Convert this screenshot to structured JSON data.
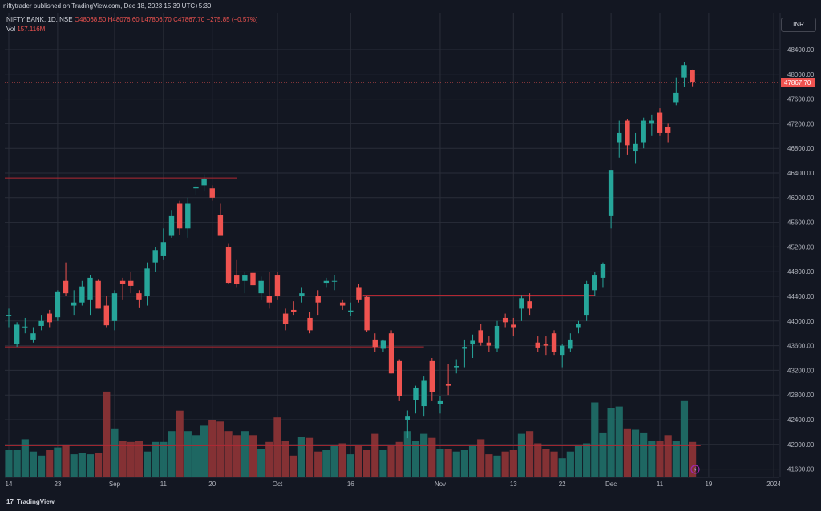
{
  "header": {
    "published_line": "niftytrader published on TradingView.com, Dec 18, 2023 15:39 UTC+5:30"
  },
  "legend": {
    "symbol": "NIFTY BANK, 1D, NSE",
    "o": "O48068.50",
    "h": "H48076.60",
    "l": "L47806.70",
    "c": "C47867.70",
    "change": "−275.85 (−0.57%)",
    "vol_label": "Vol",
    "vol_value": "157.116M"
  },
  "currency": "INR",
  "footer": {
    "brand_mark": "17",
    "brand": "TradingView"
  },
  "colors": {
    "background": "#131722",
    "up": "#26a69a",
    "down": "#ef5350",
    "grid": "#2a2e39",
    "level_line": "#b22833",
    "last_price_bg": "#ef5350"
  },
  "chart_data": {
    "type": "candlestick",
    "last_price_label": "47867.70",
    "ylim": [
      41400,
      48800
    ],
    "y_ticks": [
      41600,
      42000,
      42400,
      42800,
      43200,
      43600,
      44000,
      44400,
      44800,
      45200,
      45600,
      46000,
      46400,
      46800,
      47200,
      47600,
      48000,
      48400
    ],
    "x_ticks": [
      {
        "label": "14",
        "index": 0
      },
      {
        "label": "23",
        "index": 6
      },
      {
        "label": "Sep",
        "index": 13
      },
      {
        "label": "11",
        "index": 19
      },
      {
        "label": "20",
        "index": 25
      },
      {
        "label": "Oct",
        "index": 33
      },
      {
        "label": "16",
        "index": 42
      },
      {
        "label": "Nov",
        "index": 53
      },
      {
        "label": "13",
        "index": 62
      },
      {
        "label": "22",
        "index": 68
      },
      {
        "label": "Dec",
        "index": 74
      },
      {
        "label": "11",
        "index": 80
      },
      {
        "label": "19",
        "index": 86
      },
      {
        "label": "2024",
        "index": 94
      }
    ],
    "levels": [
      {
        "y": 46320,
        "from_index": 0,
        "to_index": 28
      },
      {
        "y": 44420,
        "from_index": 44,
        "to_index": 72
      },
      {
        "y": 43580,
        "from_index": 0,
        "to_index": 51
      },
      {
        "y": 41980,
        "from_index": 0,
        "to_index": 85
      }
    ],
    "candles": [
      {
        "o": 44080,
        "h": 44200,
        "l": 43900,
        "c": 44100,
        "v": 0.2
      },
      {
        "o": 43620,
        "h": 43980,
        "l": 43580,
        "c": 43940,
        "v": 0.2
      },
      {
        "o": 43900,
        "h": 44050,
        "l": 43800,
        "c": 43910,
        "v": 0.28
      },
      {
        "o": 43700,
        "h": 43900,
        "l": 43650,
        "c": 43800,
        "v": 0.19
      },
      {
        "o": 43920,
        "h": 44100,
        "l": 43850,
        "c": 44000,
        "v": 0.16
      },
      {
        "o": 44120,
        "h": 44180,
        "l": 43900,
        "c": 43980,
        "v": 0.2
      },
      {
        "o": 44060,
        "h": 44500,
        "l": 44000,
        "c": 44480,
        "v": 0.22
      },
      {
        "o": 44650,
        "h": 44950,
        "l": 44400,
        "c": 44450,
        "v": 0.24
      },
      {
        "o": 44250,
        "h": 44500,
        "l": 44100,
        "c": 44300,
        "v": 0.17
      },
      {
        "o": 44300,
        "h": 44650,
        "l": 44250,
        "c": 44560,
        "v": 0.18
      },
      {
        "o": 44350,
        "h": 44750,
        "l": 44100,
        "c": 44700,
        "v": 0.17
      },
      {
        "o": 44650,
        "h": 44680,
        "l": 44200,
        "c": 44200,
        "v": 0.18
      },
      {
        "o": 44250,
        "h": 44400,
        "l": 43900,
        "c": 43930,
        "v": 0.63
      },
      {
        "o": 44000,
        "h": 44500,
        "l": 43850,
        "c": 44450,
        "v": 0.36
      },
      {
        "o": 44650,
        "h": 44700,
        "l": 44350,
        "c": 44600,
        "v": 0.27
      },
      {
        "o": 44650,
        "h": 44800,
        "l": 44450,
        "c": 44570,
        "v": 0.26
      },
      {
        "o": 44450,
        "h": 44500,
        "l": 44220,
        "c": 44350,
        "v": 0.27
      },
      {
        "o": 44400,
        "h": 44950,
        "l": 44250,
        "c": 44850,
        "v": 0.19
      },
      {
        "o": 44950,
        "h": 45200,
        "l": 44800,
        "c": 45150,
        "v": 0.26
      },
      {
        "o": 45050,
        "h": 45500,
        "l": 45000,
        "c": 45280,
        "v": 0.26
      },
      {
        "o": 45380,
        "h": 45800,
        "l": 45350,
        "c": 45700,
        "v": 0.34
      },
      {
        "o": 45900,
        "h": 45950,
        "l": 45400,
        "c": 45500,
        "v": 0.49
      },
      {
        "o": 45500,
        "h": 46000,
        "l": 45350,
        "c": 45900,
        "v": 0.34
      },
      {
        "o": 46150,
        "h": 46200,
        "l": 46050,
        "c": 46180,
        "v": 0.31
      },
      {
        "o": 46200,
        "h": 46380,
        "l": 46100,
        "c": 46300,
        "v": 0.38
      },
      {
        "o": 46150,
        "h": 46200,
        "l": 45950,
        "c": 46000,
        "v": 0.42
      },
      {
        "o": 45720,
        "h": 45900,
        "l": 45400,
        "c": 45380,
        "v": 0.41
      },
      {
        "o": 45200,
        "h": 45250,
        "l": 44600,
        "c": 44620,
        "v": 0.34
      },
      {
        "o": 44750,
        "h": 45000,
        "l": 44550,
        "c": 44600,
        "v": 0.31
      },
      {
        "o": 44650,
        "h": 44800,
        "l": 44450,
        "c": 44750,
        "v": 0.34
      },
      {
        "o": 44780,
        "h": 44950,
        "l": 44500,
        "c": 44580,
        "v": 0.31
      },
      {
        "o": 44450,
        "h": 44720,
        "l": 44350,
        "c": 44650,
        "v": 0.21
      },
      {
        "o": 44400,
        "h": 44800,
        "l": 44200,
        "c": 44300,
        "v": 0.26
      },
      {
        "o": 44750,
        "h": 44800,
        "l": 44350,
        "c": 44400,
        "v": 0.44
      },
      {
        "o": 44120,
        "h": 44200,
        "l": 43850,
        "c": 43950,
        "v": 0.27
      },
      {
        "o": 44180,
        "h": 44320,
        "l": 44100,
        "c": 44150,
        "v": 0.16
      },
      {
        "o": 44400,
        "h": 44550,
        "l": 44300,
        "c": 44450,
        "v": 0.3
      },
      {
        "o": 44050,
        "h": 44150,
        "l": 43800,
        "c": 43850,
        "v": 0.29
      },
      {
        "o": 44400,
        "h": 44500,
        "l": 44100,
        "c": 44300,
        "v": 0.19
      },
      {
        "o": 44620,
        "h": 44700,
        "l": 44550,
        "c": 44650,
        "v": 0.2
      },
      {
        "o": 44650,
        "h": 44750,
        "l": 44500,
        "c": 44650,
        "v": 0.23
      },
      {
        "o": 44300,
        "h": 44350,
        "l": 44180,
        "c": 44250,
        "v": 0.25
      },
      {
        "o": 44150,
        "h": 44300,
        "l": 44080,
        "c": 44170,
        "v": 0.17
      },
      {
        "o": 44550,
        "h": 44600,
        "l": 44300,
        "c": 44350,
        "v": 0.23
      },
      {
        "o": 44390,
        "h": 44400,
        "l": 43820,
        "c": 43850,
        "v": 0.2
      },
      {
        "o": 43700,
        "h": 43800,
        "l": 43500,
        "c": 43580,
        "v": 0.32
      },
      {
        "o": 43550,
        "h": 43700,
        "l": 43500,
        "c": 43680,
        "v": 0.2
      },
      {
        "o": 43800,
        "h": 43850,
        "l": 43150,
        "c": 43150,
        "v": 0.23
      },
      {
        "o": 43350,
        "h": 43380,
        "l": 42700,
        "c": 42780,
        "v": 0.26
      },
      {
        "o": 42400,
        "h": 42550,
        "l": 42100,
        "c": 42450,
        "v": 0.34
      },
      {
        "o": 42720,
        "h": 42950,
        "l": 42500,
        "c": 42920,
        "v": 0.27
      },
      {
        "o": 42620,
        "h": 43100,
        "l": 42450,
        "c": 43030,
        "v": 0.32
      },
      {
        "o": 43350,
        "h": 43400,
        "l": 42700,
        "c": 42850,
        "v": 0.29
      },
      {
        "o": 42650,
        "h": 42780,
        "l": 42500,
        "c": 42700,
        "v": 0.21
      },
      {
        "o": 42980,
        "h": 43300,
        "l": 42800,
        "c": 42950,
        "v": 0.21
      },
      {
        "o": 43250,
        "h": 43380,
        "l": 43150,
        "c": 43270,
        "v": 0.19
      },
      {
        "o": 43550,
        "h": 43700,
        "l": 43250,
        "c": 43580,
        "v": 0.2
      },
      {
        "o": 43620,
        "h": 43780,
        "l": 43400,
        "c": 43680,
        "v": 0.23
      },
      {
        "o": 43850,
        "h": 43950,
        "l": 43600,
        "c": 43650,
        "v": 0.28
      },
      {
        "o": 43650,
        "h": 43750,
        "l": 43500,
        "c": 43600,
        "v": 0.17
      },
      {
        "o": 43550,
        "h": 44000,
        "l": 43500,
        "c": 43920,
        "v": 0.16
      },
      {
        "o": 44050,
        "h": 44120,
        "l": 43900,
        "c": 43980,
        "v": 0.19
      },
      {
        "o": 43940,
        "h": 44050,
        "l": 43750,
        "c": 43900,
        "v": 0.2
      },
      {
        "o": 44200,
        "h": 44420,
        "l": 44000,
        "c": 44370,
        "v": 0.32
      },
      {
        "o": 44320,
        "h": 44450,
        "l": 44100,
        "c": 44200,
        "v": 0.34
      },
      {
        "o": 43650,
        "h": 43750,
        "l": 43500,
        "c": 43570,
        "v": 0.25
      },
      {
        "o": 43620,
        "h": 43750,
        "l": 43450,
        "c": 43600,
        "v": 0.21
      },
      {
        "o": 43800,
        "h": 43850,
        "l": 43450,
        "c": 43500,
        "v": 0.19
      },
      {
        "o": 43450,
        "h": 43620,
        "l": 43250,
        "c": 43600,
        "v": 0.14
      },
      {
        "o": 43550,
        "h": 43800,
        "l": 43500,
        "c": 43700,
        "v": 0.19
      },
      {
        "o": 43900,
        "h": 44000,
        "l": 43800,
        "c": 43950,
        "v": 0.23
      },
      {
        "o": 44100,
        "h": 44650,
        "l": 44000,
        "c": 44600,
        "v": 0.25
      },
      {
        "o": 44500,
        "h": 44800,
        "l": 44400,
        "c": 44750,
        "v": 0.55
      },
      {
        "o": 44700,
        "h": 44950,
        "l": 44550,
        "c": 44920,
        "v": 0.33
      },
      {
        "o": 45700,
        "h": 46450,
        "l": 45500,
        "c": 46450,
        "v": 0.51
      },
      {
        "o": 46900,
        "h": 47250,
        "l": 46650,
        "c": 47050,
        "v": 0.52
      },
      {
        "o": 47250,
        "h": 47270,
        "l": 46700,
        "c": 46850,
        "v": 0.36
      },
      {
        "o": 46750,
        "h": 47050,
        "l": 46550,
        "c": 46870,
        "v": 0.35
      },
      {
        "o": 46900,
        "h": 47300,
        "l": 46800,
        "c": 47250,
        "v": 0.33
      },
      {
        "o": 47200,
        "h": 47350,
        "l": 47000,
        "c": 47250,
        "v": 0.27
      },
      {
        "o": 47380,
        "h": 47450,
        "l": 47000,
        "c": 47050,
        "v": 0.27
      },
      {
        "o": 47150,
        "h": 47200,
        "l": 46900,
        "c": 47050,
        "v": 0.31
      },
      {
        "o": 47550,
        "h": 47950,
        "l": 47500,
        "c": 47700,
        "v": 0.27
      },
      {
        "o": 47950,
        "h": 48200,
        "l": 47800,
        "c": 48150,
        "v": 0.56
      },
      {
        "o": 48068.5,
        "h": 48076.6,
        "l": 47806.7,
        "c": 47867.7,
        "v": 0.26
      }
    ]
  }
}
